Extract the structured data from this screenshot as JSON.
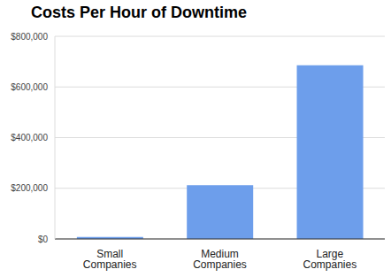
{
  "chart_data": {
    "type": "bar",
    "title": "Costs Per Hour of Downtime",
    "categories": [
      "Small Companies",
      "Medium Companies",
      "Large Companies"
    ],
    "values": [
      8000,
      212000,
      686000
    ],
    "color": "#6d9eeb",
    "ylim": [
      0,
      800000
    ],
    "yticks": [
      {
        "value": 0,
        "label": "$0"
      },
      {
        "value": 200000,
        "label": "$200,000"
      },
      {
        "value": 400000,
        "label": "$400,000"
      },
      {
        "value": 600000,
        "label": "$600,000"
      },
      {
        "value": 800000,
        "label": "$800,000"
      }
    ],
    "grid": true
  }
}
